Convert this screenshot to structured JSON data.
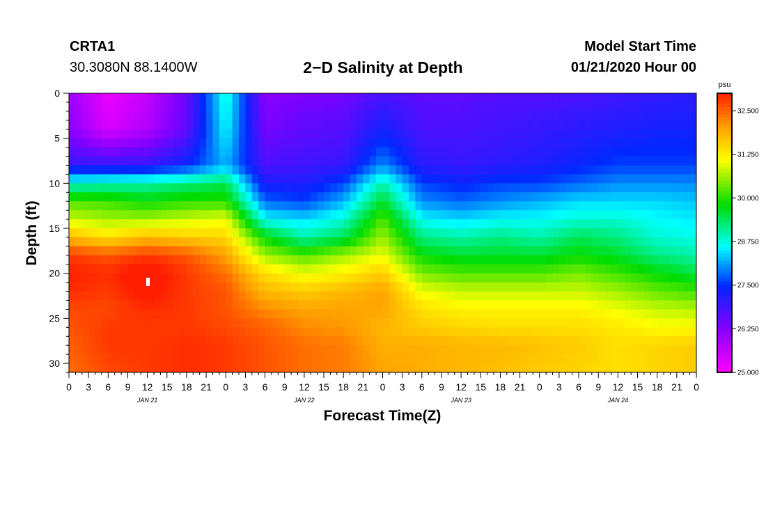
{
  "header": {
    "station": "CRTA1",
    "coords": "30.3080N 88.1400W",
    "title": "2−D Salinity at Depth",
    "model_start_label": "Model Start Time",
    "model_start_value": "01/21/2020 Hour 00"
  },
  "chart_data": {
    "type": "heatmap",
    "title": "2−D Salinity at Depth",
    "xlabel": "Forecast Time(Z)",
    "ylabel": "Depth (ft)",
    "x_ticks": [
      "0",
      "3",
      "6",
      "9",
      "12",
      "15",
      "18",
      "21",
      "0",
      "3",
      "6",
      "9",
      "12",
      "15",
      "18",
      "21",
      "0",
      "3",
      "6",
      "9",
      "12",
      "15",
      "18",
      "21",
      "0",
      "3",
      "6",
      "9",
      "12",
      "15",
      "18",
      "21",
      "0"
    ],
    "x_hours": [
      0,
      3,
      6,
      9,
      12,
      15,
      18,
      21,
      24,
      27,
      30,
      33,
      36,
      39,
      42,
      45,
      48,
      51,
      54,
      57,
      60,
      63,
      66,
      69,
      72,
      75,
      78,
      81,
      84,
      87,
      90,
      93,
      96
    ],
    "day_labels": [
      {
        "text": "JAN 21",
        "hour": 12
      },
      {
        "text": "JAN 22",
        "hour": 36
      },
      {
        "text": "JAN 23",
        "hour": 60
      },
      {
        "text": "JAN 24",
        "hour": 84
      }
    ],
    "xlim": [
      0,
      96
    ],
    "y_ticks": [
      "0",
      "5",
      "10",
      "15",
      "20",
      "25",
      "30"
    ],
    "y_values": [
      0,
      5,
      10,
      15,
      20,
      25,
      30
    ],
    "ylim": [
      0,
      31
    ],
    "colorbar": {
      "unit": "psu",
      "range": [
        25.0,
        33.0
      ],
      "tick_labels": [
        "25.000",
        "26.250",
        "27.500",
        "28.750",
        "30.000",
        "31.250",
        "32.500"
      ],
      "tick_values": [
        25.0,
        26.25,
        27.5,
        28.75,
        30.0,
        31.25,
        32.5
      ]
    },
    "columns_hours": [
      0,
      6,
      12,
      18,
      24,
      30,
      36,
      42,
      48,
      54,
      60,
      66,
      72,
      78,
      84,
      90,
      96
    ],
    "depths_ft": [
      0,
      4,
      8,
      10,
      12,
      14,
      16,
      18,
      20,
      22,
      24,
      26,
      28,
      31
    ],
    "values_psu": [
      [
        26.0,
        25.2,
        25.6,
        26.5,
        28.8,
        26.2,
        26.3,
        26.4,
        26.8,
        26.6,
        26.6,
        26.7,
        26.7,
        26.8,
        26.9,
        27.0,
        27.1
      ],
      [
        26.2,
        25.4,
        25.8,
        26.6,
        28.6,
        26.4,
        26.6,
        26.7,
        27.3,
        26.8,
        26.8,
        26.9,
        27.0,
        27.1,
        27.2,
        27.3,
        27.3
      ],
      [
        27.0,
        27.0,
        27.0,
        27.4,
        28.2,
        26.8,
        26.9,
        27.0,
        28.0,
        27.1,
        27.0,
        27.1,
        27.2,
        27.4,
        27.6,
        27.6,
        27.6
      ],
      [
        28.8,
        28.9,
        29.0,
        29.2,
        29.4,
        27.2,
        27.2,
        27.6,
        29.0,
        27.6,
        27.4,
        27.6,
        27.6,
        27.8,
        28.0,
        28.0,
        28.0
      ],
      [
        30.2,
        30.1,
        29.8,
        30.0,
        30.0,
        27.8,
        27.6,
        28.2,
        29.6,
        28.0,
        27.8,
        28.0,
        28.2,
        28.4,
        28.4,
        28.4,
        28.3
      ],
      [
        30.8,
        30.6,
        30.6,
        30.8,
        31.0,
        28.6,
        28.4,
        28.8,
        30.2,
        28.6,
        28.4,
        28.6,
        28.6,
        28.8,
        28.8,
        28.6,
        28.5
      ],
      [
        31.8,
        31.4,
        31.8,
        31.6,
        31.5,
        29.8,
        29.0,
        29.4,
        30.6,
        29.2,
        29.0,
        29.2,
        29.0,
        29.4,
        29.2,
        28.8,
        28.7
      ],
      [
        32.8,
        32.6,
        32.8,
        32.6,
        32.0,
        30.6,
        30.2,
        30.6,
        31.0,
        29.8,
        29.6,
        29.6,
        29.6,
        29.8,
        29.6,
        29.2,
        29.0
      ],
      [
        33.0,
        32.9,
        33.2,
        32.8,
        32.4,
        31.4,
        31.0,
        31.2,
        31.6,
        30.4,
        30.2,
        30.2,
        30.2,
        30.4,
        30.1,
        29.8,
        29.5
      ],
      [
        32.9,
        32.8,
        33.1,
        32.8,
        32.6,
        31.8,
        31.6,
        31.8,
        32.0,
        31.0,
        30.8,
        30.8,
        30.8,
        30.8,
        30.6,
        30.3,
        30.1
      ],
      [
        32.7,
        32.7,
        32.9,
        32.8,
        32.6,
        32.2,
        32.0,
        32.0,
        32.0,
        31.4,
        31.2,
        31.2,
        31.2,
        31.2,
        31.0,
        30.8,
        30.7
      ],
      [
        32.6,
        32.8,
        32.8,
        32.8,
        32.7,
        32.5,
        32.2,
        32.1,
        31.8,
        31.6,
        31.5,
        31.4,
        31.4,
        31.4,
        31.3,
        31.1,
        31.1
      ],
      [
        32.5,
        32.8,
        32.8,
        32.9,
        32.8,
        32.6,
        32.4,
        32.3,
        31.9,
        31.9,
        31.8,
        31.8,
        31.7,
        31.6,
        31.4,
        31.5,
        31.6
      ],
      [
        32.4,
        32.7,
        32.8,
        32.9,
        32.8,
        32.6,
        32.4,
        32.3,
        32.0,
        31.9,
        31.8,
        31.7,
        31.6,
        31.5,
        31.4,
        31.5,
        31.6
      ]
    ]
  }
}
